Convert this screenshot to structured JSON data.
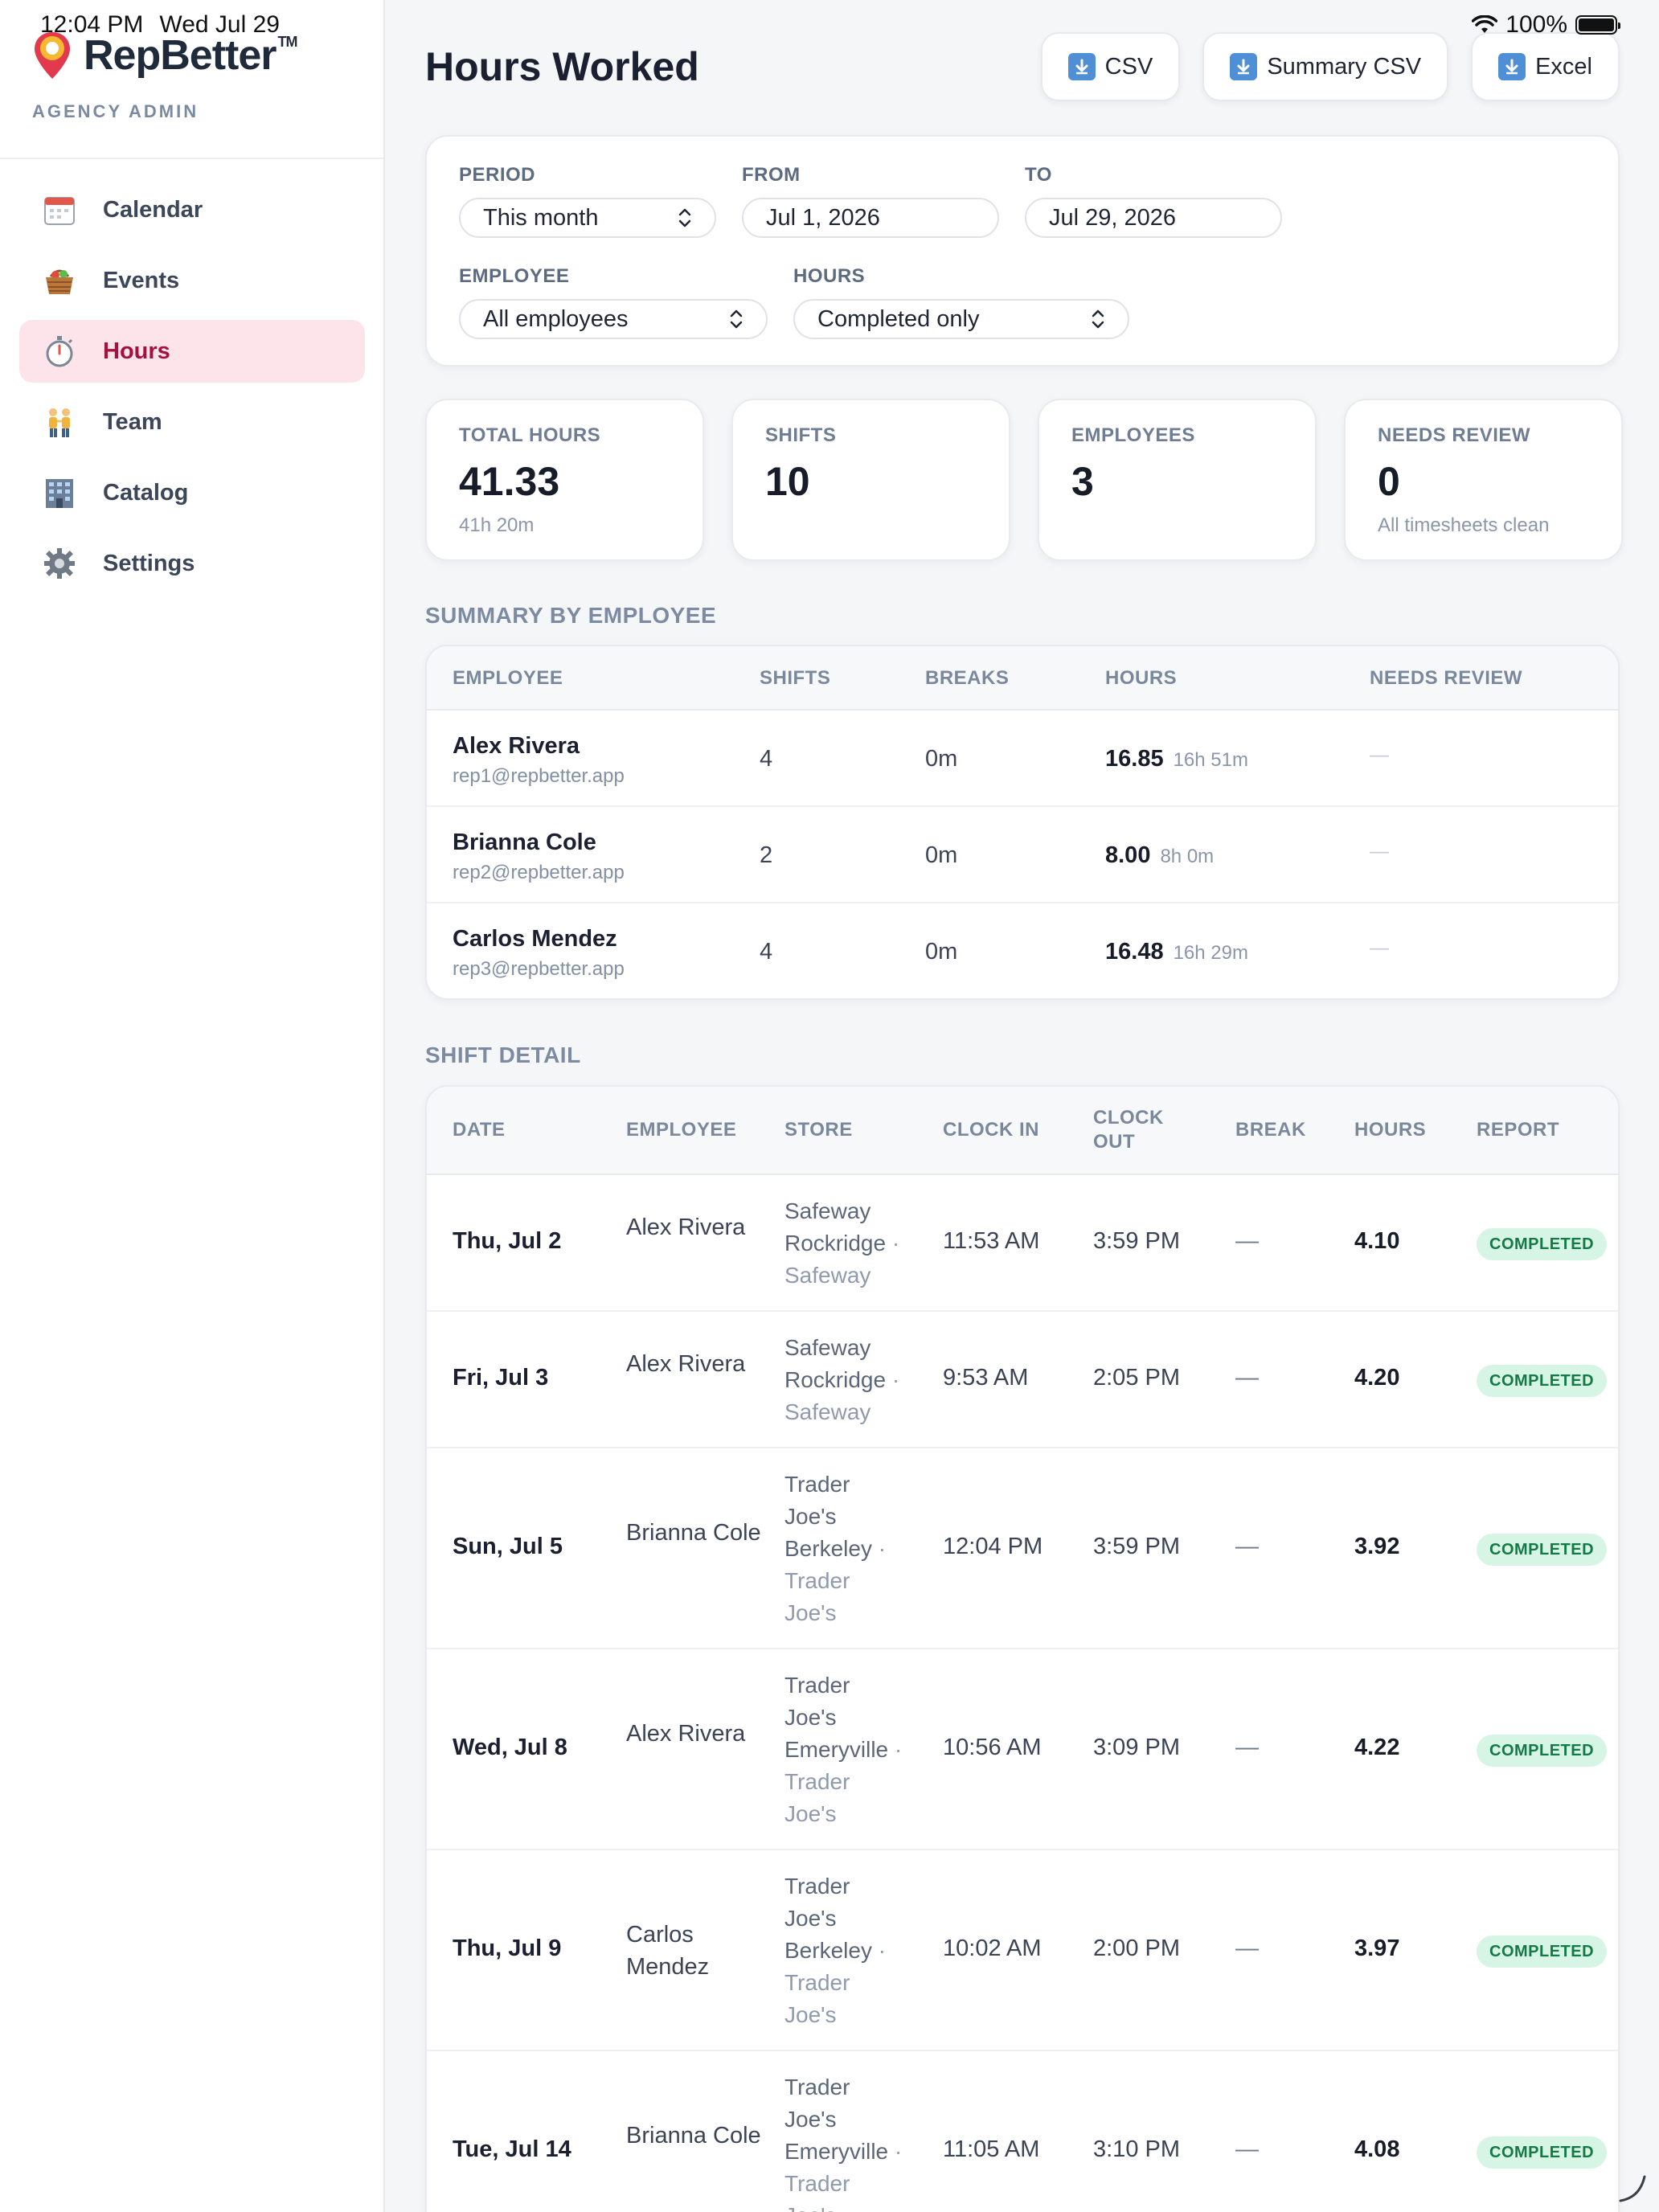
{
  "status_bar": {
    "time": "12:04 PM",
    "date": "Wed Jul 29",
    "battery": "100%"
  },
  "brand": {
    "name": "RepBetter",
    "tm": "TM",
    "role": "AGENCY ADMIN"
  },
  "nav": [
    {
      "label": "Calendar",
      "icon": "calendar-icon",
      "active": false
    },
    {
      "label": "Events",
      "icon": "basket-icon",
      "active": false
    },
    {
      "label": "Hours",
      "icon": "stopwatch-icon",
      "active": true
    },
    {
      "label": "Team",
      "icon": "team-icon",
      "active": false
    },
    {
      "label": "Catalog",
      "icon": "building-icon",
      "active": false
    },
    {
      "label": "Settings",
      "icon": "gear-icon",
      "active": false
    }
  ],
  "page": {
    "title": "Hours Worked",
    "actions": {
      "csv": "CSV",
      "summary_csv": "Summary CSV",
      "excel": "Excel"
    }
  },
  "filters": {
    "period_label": "PERIOD",
    "period_value": "This month",
    "from_label": "FROM",
    "from_value": "Jul 1, 2026",
    "to_label": "TO",
    "to_value": "Jul 29, 2026",
    "employee_label": "EMPLOYEE",
    "employee_value": "All employees",
    "hours_label": "HOURS",
    "hours_value": "Completed only"
  },
  "stats": [
    {
      "label": "TOTAL HOURS",
      "value": "41.33",
      "sub": "41h 20m"
    },
    {
      "label": "SHIFTS",
      "value": "10",
      "sub": ""
    },
    {
      "label": "EMPLOYEES",
      "value": "3",
      "sub": ""
    },
    {
      "label": "NEEDS REVIEW",
      "value": "0",
      "sub": "All timesheets clean"
    }
  ],
  "summary": {
    "title": "SUMMARY BY EMPLOYEE",
    "columns": [
      "EMPLOYEE",
      "SHIFTS",
      "BREAKS",
      "HOURS",
      "NEEDS REVIEW"
    ],
    "rows": [
      {
        "name": "Alex Rivera",
        "email": "rep1@repbetter.app",
        "shifts": "4",
        "breaks": "0m",
        "hours": "16.85",
        "hours_hm": "16h 51m",
        "needs_review": "—"
      },
      {
        "name": "Brianna Cole",
        "email": "rep2@repbetter.app",
        "shifts": "2",
        "breaks": "0m",
        "hours": "8.00",
        "hours_hm": "8h 0m",
        "needs_review": "—"
      },
      {
        "name": "Carlos Mendez",
        "email": "rep3@repbetter.app",
        "shifts": "4",
        "breaks": "0m",
        "hours": "16.48",
        "hours_hm": "16h 29m",
        "needs_review": "—"
      }
    ]
  },
  "detail": {
    "title": "SHIFT DETAIL",
    "columns": [
      "DATE",
      "EMPLOYEE",
      "STORE",
      "CLOCK IN",
      "CLOCK OUT",
      "BREAK",
      "HOURS",
      "REPORT"
    ],
    "rows": [
      {
        "date": "Thu, Jul 2",
        "employee": "Alex Rivera",
        "store": "Safeway Rockridge",
        "chain": "· Safeway",
        "clock_in": "11:53 AM",
        "clock_out": "3:59 PM",
        "break": "—",
        "hours": "4.10",
        "report": "COMPLETED"
      },
      {
        "date": "Fri, Jul 3",
        "employee": "Alex Rivera",
        "store": "Safeway Rockridge",
        "chain": "· Safeway",
        "clock_in": "9:53 AM",
        "clock_out": "2:05 PM",
        "break": "—",
        "hours": "4.20",
        "report": "COMPLETED"
      },
      {
        "date": "Sun, Jul 5",
        "employee": "Brianna Cole",
        "store": "Trader Joe's Berkeley",
        "chain": "· Trader Joe's",
        "clock_in": "12:04 PM",
        "clock_out": "3:59 PM",
        "break": "—",
        "hours": "3.92",
        "report": "COMPLETED"
      },
      {
        "date": "Wed, Jul 8",
        "employee": "Alex Rivera",
        "store": "Trader Joe's Emeryville",
        "chain": "· Trader Joe's",
        "clock_in": "10:56 AM",
        "clock_out": "3:09 PM",
        "break": "—",
        "hours": "4.22",
        "report": "COMPLETED"
      },
      {
        "date": "Thu, Jul 9",
        "employee": "Carlos Mendez",
        "store": "Trader Joe's Berkeley",
        "chain": "· Trader Joe's",
        "clock_in": "10:02 AM",
        "clock_out": "2:00 PM",
        "break": "—",
        "hours": "3.97",
        "report": "COMPLETED"
      },
      {
        "date": "Tue, Jul 14",
        "employee": "Brianna Cole",
        "store": "Trader Joe's Emeryville",
        "chain": "· Trader Joe's",
        "clock_in": "11:05 AM",
        "clock_out": "3:10 PM",
        "break": "—",
        "hours": "4.08",
        "report": "COMPLETED"
      }
    ]
  },
  "colors": {
    "accent": "#a3123f",
    "active_bg": "#fde4ea",
    "badge_bg": "#d7f5e4",
    "badge_text": "#137a46"
  }
}
